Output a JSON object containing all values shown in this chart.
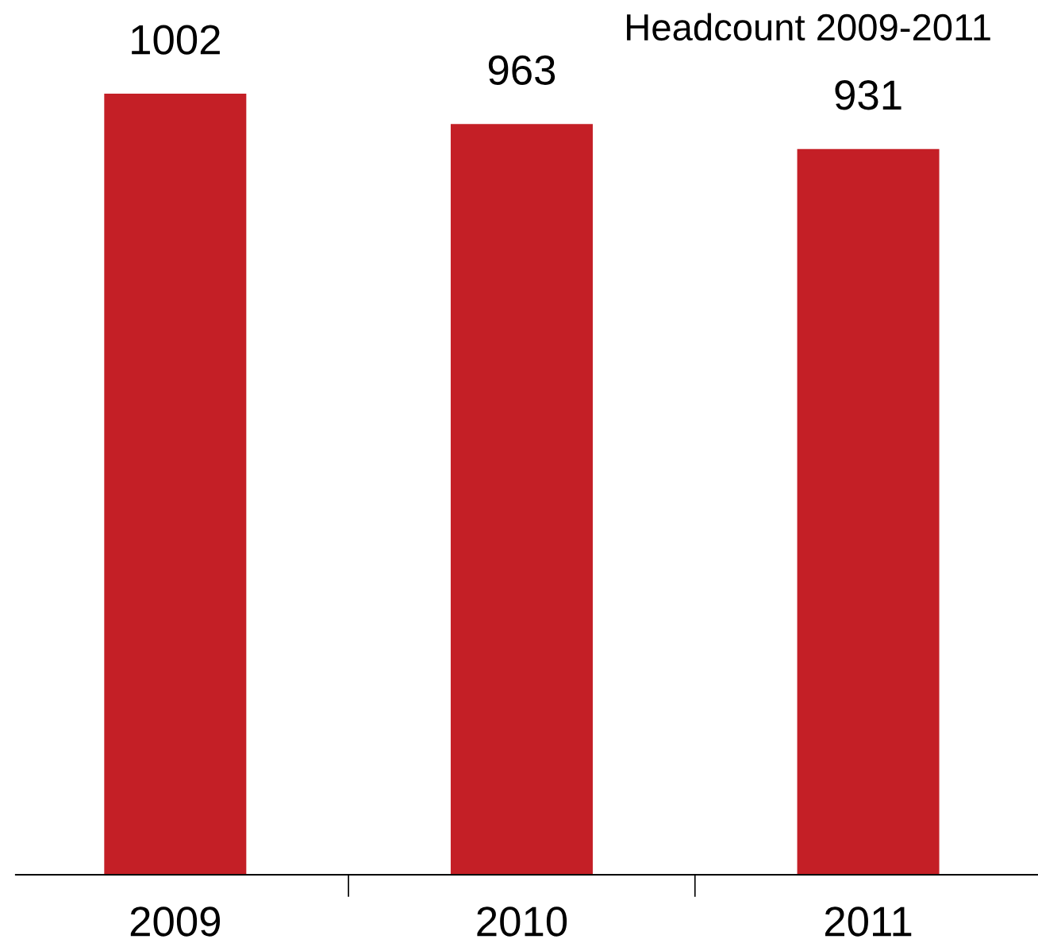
{
  "chart_data": {
    "type": "bar",
    "title": "Headcount 2009-2011",
    "categories": [
      "2009",
      "2010",
      "2011"
    ],
    "values": [
      1002,
      963,
      931
    ],
    "color": "#c41f26",
    "data_labels": true,
    "grid": false,
    "legend": false
  }
}
